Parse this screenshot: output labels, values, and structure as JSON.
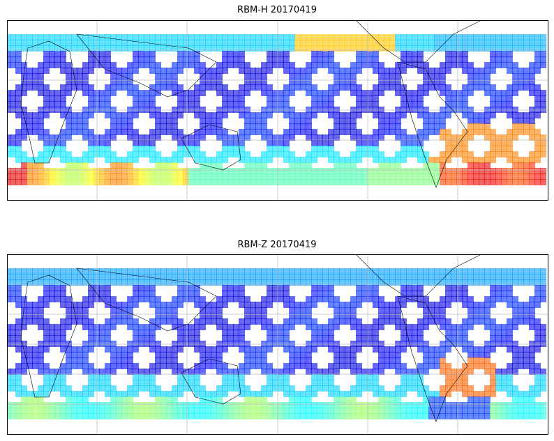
{
  "maps": [
    {
      "title": "RBM-H 20170419",
      "colormap": "jet",
      "gridlines": true,
      "projection": "equirectangular"
    },
    {
      "title": "RBM-Z 20170419",
      "colormap": "jet",
      "gridlines": true,
      "projection": "equirectangular"
    }
  ]
}
